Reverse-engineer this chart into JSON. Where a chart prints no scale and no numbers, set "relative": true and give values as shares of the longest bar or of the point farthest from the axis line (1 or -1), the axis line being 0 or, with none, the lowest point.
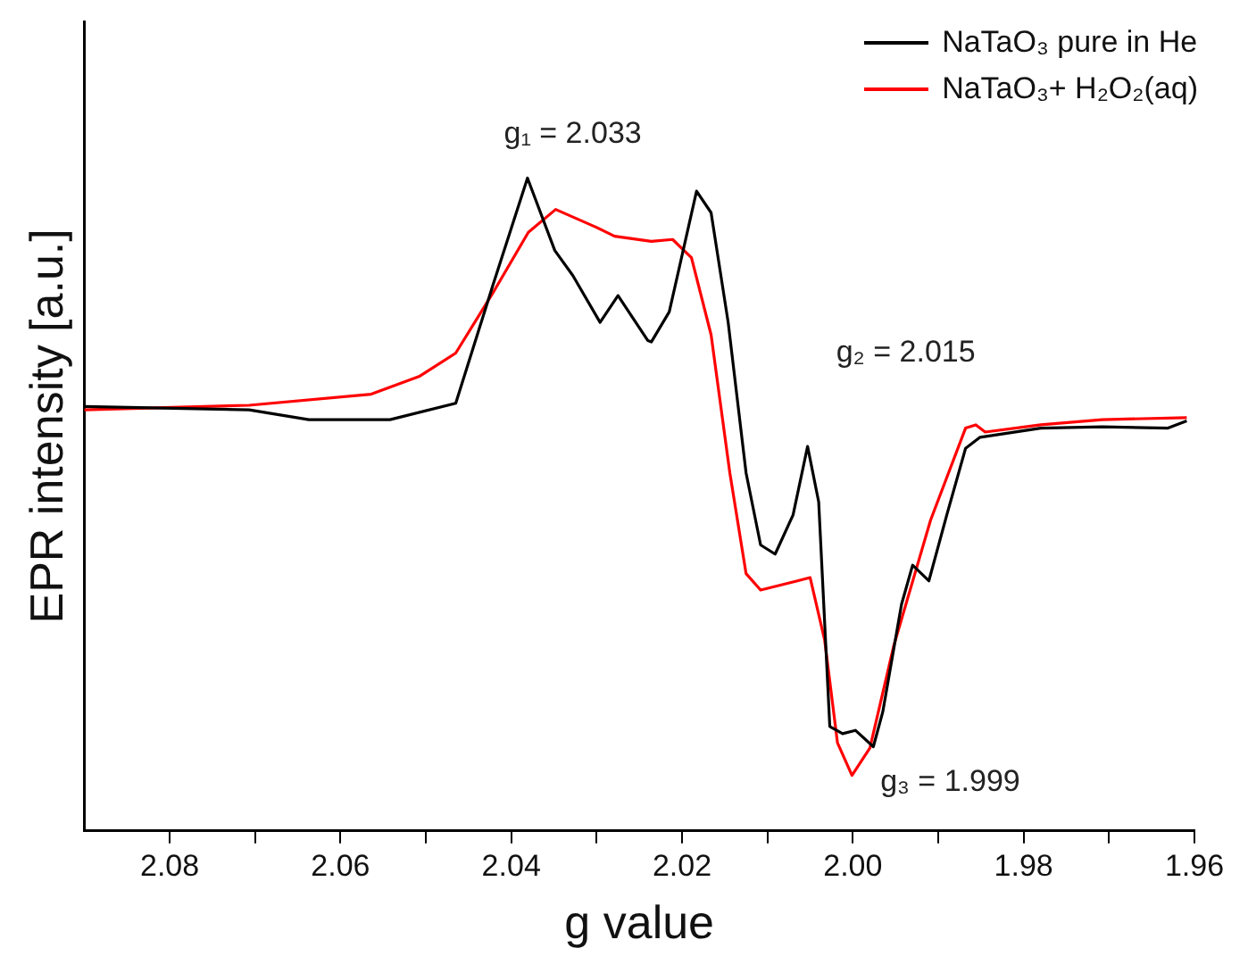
{
  "chart_data": {
    "type": "line",
    "xlabel": "g value",
    "ylabel": "EPR intensity [a.u.]",
    "relative": true,
    "xlim": [
      2.09,
      1.96
    ],
    "xticks": [
      {
        "value": 2.08,
        "label": "2.08"
      },
      {
        "value": 2.07,
        "label": null
      },
      {
        "value": 2.06,
        "label": "2.06"
      },
      {
        "value": 2.05,
        "label": null
      },
      {
        "value": 2.04,
        "label": "2.04"
      },
      {
        "value": 2.03,
        "label": null
      },
      {
        "value": 2.02,
        "label": "2.02"
      },
      {
        "value": 2.01,
        "label": null
      },
      {
        "value": 2.0,
        "label": "2.00"
      },
      {
        "value": 1.99,
        "label": null
      },
      {
        "value": 1.98,
        "label": "1.98"
      },
      {
        "value": 1.97,
        "label": null
      },
      {
        "value": 1.96,
        "label": "1.96"
      }
    ],
    "legend": "top right",
    "grid": false,
    "marker": "none",
    "line_style": "solid",
    "tick_labels": "x",
    "series": [
      {
        "name": "NaTaO₃ pure in He",
        "color": "#000000",
        "x": [
          2.09,
          2.0707,
          2.0637,
          2.0542,
          2.0465,
          2.0422,
          2.0381,
          2.0349,
          2.0328,
          2.0296,
          2.0275,
          2.024,
          2.0236,
          2.0215,
          2.0183,
          2.0166,
          2.0146,
          2.0125,
          2.0108,
          2.0091,
          2.007,
          2.0053,
          2.004,
          2.0027,
          2.0012,
          1.9997,
          1.9976,
          1.9965,
          1.9943,
          1.993,
          1.9911,
          1.989,
          1.9868,
          1.9851,
          1.978,
          1.9708,
          1.9631,
          1.9609
        ],
        "values": [
          0.65,
          0.645,
          0.63,
          0.63,
          0.655,
          0.834,
          1.0,
          0.889,
          0.851,
          0.779,
          0.82,
          0.751,
          0.749,
          0.795,
          0.98,
          0.947,
          0.779,
          0.548,
          0.438,
          0.424,
          0.484,
          0.589,
          0.504,
          0.16,
          0.149,
          0.154,
          0.129,
          0.182,
          0.347,
          0.407,
          0.383,
          0.484,
          0.586,
          0.603,
          0.617,
          0.619,
          0.617,
          0.628
        ]
      },
      {
        "name": "NaTaO₃+ H₂O₂(aq)",
        "color": "#ff0000",
        "x": [
          2.09,
          2.0707,
          2.0564,
          2.0508,
          2.0465,
          2.0422,
          2.038,
          2.0348,
          2.0301,
          2.0279,
          2.0236,
          2.0211,
          2.0189,
          2.0166,
          2.0144,
          2.0125,
          2.0108,
          2.0065,
          2.005,
          2.0033,
          2.0018,
          2.0001,
          1.998,
          1.9952,
          1.9909,
          1.9868,
          1.9856,
          1.9845,
          1.978,
          1.9708,
          1.9609
        ],
        "values": [
          0.645,
          0.652,
          0.669,
          0.696,
          0.732,
          0.823,
          0.917,
          0.952,
          0.925,
          0.911,
          0.903,
          0.906,
          0.878,
          0.76,
          0.548,
          0.394,
          0.369,
          0.383,
          0.388,
          0.292,
          0.135,
          0.085,
          0.127,
          0.284,
          0.476,
          0.617,
          0.622,
          0.611,
          0.622,
          0.63,
          0.633
        ]
      }
    ],
    "annotations": [
      "g₁ = 2.033",
      "g₂ = 2.015",
      "g₃ = 1.999"
    ]
  }
}
